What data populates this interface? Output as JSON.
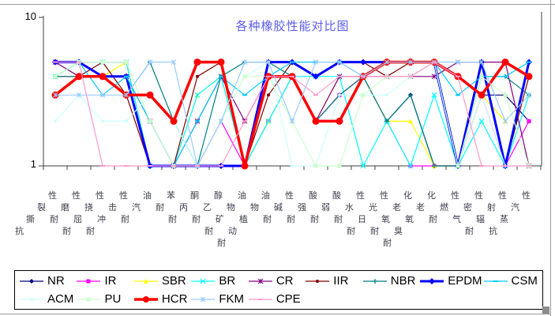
{
  "window": {
    "frame_color": "#9a9a9a",
    "resize_handle_color": "#8c8c8c"
  },
  "chart_data": {
    "type": "line",
    "title": "各种橡胶性能对比图",
    "title_color": "#5d5df0",
    "yscale": "log",
    "ylim": [
      1,
      10
    ],
    "ytick_top": "10",
    "ytick_bottom": "1",
    "grid": false,
    "legend_position": "bottom",
    "legend_row_split": 9,
    "categories": [
      "抗撕裂性",
      "耐磨性",
      "耐屈挠性",
      "耐冲击性",
      "耐汽油",
      "耐苯",
      "耐丙酮",
      "耐乙醇",
      "耐矿物油",
      "耐动植物油",
      "耐碱性",
      "耐强酸",
      "耐弱酸",
      "耐水性",
      "耐日光性",
      "耐氧老化",
      "耐臭氧老化",
      "耐燃性",
      "气密性",
      "耐辐射性",
      "抗蒸汽性"
    ],
    "series": [
      {
        "name": "NR",
        "color": "#000080",
        "width": 1.2,
        "marker": "diamond",
        "msize": 3,
        "values": [
          5,
          5,
          5,
          5,
          1,
          1,
          1,
          1,
          1,
          2,
          4,
          2,
          3,
          4,
          2,
          3,
          1,
          1,
          3,
          3,
          2
        ]
      },
      {
        "name": "IR",
        "color": "#FF00FF",
        "width": 1.2,
        "marker": "square",
        "msize": 2.5,
        "values": [
          5,
          5,
          5,
          5,
          1,
          1,
          1,
          2,
          1,
          2,
          4,
          2,
          3,
          4,
          2,
          1,
          1,
          1,
          3,
          1,
          2
        ]
      },
      {
        "name": "SBR",
        "color": "#FFFF00",
        "width": 1.2,
        "marker": "triangle",
        "msize": 3,
        "values": [
          4,
          5,
          4,
          5,
          1,
          1,
          3,
          4,
          1,
          2,
          4,
          2,
          4,
          4,
          2,
          2,
          1,
          1,
          3,
          2,
          3
        ]
      },
      {
        "name": "BR",
        "color": "#00FFFF",
        "width": 1.2,
        "marker": "x",
        "msize": 3,
        "values": [
          4,
          5,
          5,
          5,
          1,
          1,
          3,
          4,
          1,
          2,
          4,
          4,
          4,
          1,
          2,
          1,
          3,
          1,
          2,
          1,
          3
        ]
      },
      {
        "name": "CR",
        "color": "#800080",
        "width": 1.2,
        "marker": "asterisk",
        "msize": 3,
        "values": [
          5,
          4,
          4,
          4,
          2,
          1,
          2,
          4,
          2,
          4,
          4,
          2,
          4,
          4,
          4,
          4,
          4,
          5,
          5,
          5,
          1
        ]
      },
      {
        "name": "IIR",
        "color": "#800000",
        "width": 1.2,
        "marker": "circle",
        "msize": 2,
        "values": [
          4,
          4,
          5,
          3,
          1,
          1,
          4,
          5,
          1,
          3,
          5,
          4,
          5,
          5,
          4,
          5,
          5,
          1,
          5,
          1,
          4
        ]
      },
      {
        "name": "NBR",
        "color": "#008080",
        "width": 1.2,
        "marker": "plus",
        "msize": 3,
        "values": [
          4,
          4,
          4,
          3,
          5,
          2,
          1,
          4,
          5,
          5,
          4,
          2,
          3,
          4,
          2,
          3,
          1,
          1,
          4,
          4,
          3
        ]
      },
      {
        "name": "EPDM",
        "color": "#0000FF",
        "width": 3,
        "marker": "diamond",
        "msize": 4,
        "values": [
          5,
          5,
          4,
          4,
          1,
          1,
          1,
          1,
          1,
          5,
          5,
          4,
          5,
          5,
          5,
          5,
          5,
          1,
          5,
          1,
          5
        ]
      },
      {
        "name": "CSM",
        "color": "#00CCFF",
        "width": 1.2,
        "marker": "dash",
        "msize": 3,
        "values": [
          4,
          5,
          3,
          4,
          2,
          1,
          2,
          4,
          3,
          4,
          5,
          5,
          5,
          4,
          5,
          5,
          5,
          3,
          4,
          4,
          5
        ]
      },
      {
        "name": "ACM",
        "color": "#CCFFFF",
        "width": 1.2,
        "marker": "diamond",
        "msize": 2.5,
        "values": [
          2,
          3,
          2,
          2,
          3,
          2,
          1,
          2,
          4,
          5,
          1,
          1,
          3,
          3,
          3,
          4,
          5,
          1,
          3,
          1,
          1
        ]
      },
      {
        "name": "PU",
        "color": "#CCFFCC",
        "width": 1.2,
        "marker": "square",
        "msize": 2.5,
        "values": [
          4,
          5,
          5,
          5,
          2,
          1,
          1,
          2,
          4,
          4,
          2,
          1,
          1,
          3,
          4,
          4,
          5,
          1,
          4,
          3,
          1
        ]
      },
      {
        "name": "HCR",
        "color": "#FF0000",
        "width": 3.5,
        "marker": "circle",
        "msize": 4.5,
        "values": [
          3,
          4,
          4,
          3,
          3,
          2,
          5,
          5,
          1,
          4,
          4,
          2,
          2,
          4,
          5,
          5,
          5,
          4,
          3,
          5,
          4
        ]
      },
      {
        "name": "FKM",
        "color": "#99CCFF",
        "width": 1.2,
        "marker": "asterisk",
        "msize": 3,
        "values": [
          3,
          3,
          3,
          3,
          5,
          5,
          1,
          2,
          5,
          5,
          2,
          5,
          5,
          4,
          5,
          5,
          5,
          5,
          5,
          2,
          3
        ]
      },
      {
        "name": "CPE",
        "color": "#FF99CC",
        "width": 1.2,
        "marker": "dash",
        "msize": 3,
        "values": [
          5,
          5,
          1,
          1,
          1,
          1,
          1,
          1,
          2,
          4,
          4,
          3,
          4,
          4,
          4,
          4,
          5,
          4,
          1,
          1,
          1
        ]
      }
    ]
  }
}
